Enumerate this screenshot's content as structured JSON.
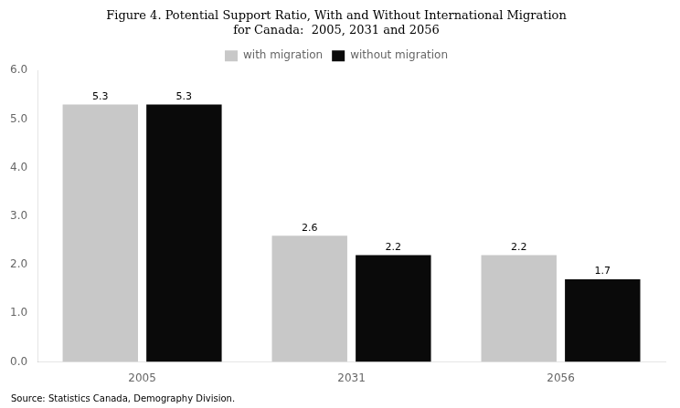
{
  "chart_data": {
    "type": "bar",
    "title": "Figure 4. Potential Support Ratio, With and Without International Migration\nfor Canada:  2005, 2031 and 2056",
    "categories": [
      "2005",
      "2031",
      "2056"
    ],
    "series": [
      {
        "name": "with migration",
        "color": "#c8c8c8",
        "values": [
          5.3,
          2.6,
          2.2
        ]
      },
      {
        "name": "without migration",
        "color": "#0a0a0a",
        "values": [
          5.3,
          2.2,
          1.7
        ]
      }
    ],
    "ylim": [
      0.0,
      6.0
    ],
    "yticks": [
      {
        "value": 0.0,
        "label": "0.0"
      },
      {
        "value": 1.0,
        "label": "1.0"
      },
      {
        "value": 2.0,
        "label": "2.0"
      },
      {
        "value": 3.0,
        "label": "3.0"
      },
      {
        "value": 4.0,
        "label": "4.0"
      },
      {
        "value": 5.0,
        "label": "5.0"
      },
      {
        "value": 6.0,
        "label": "6.0"
      }
    ],
    "annotations": [
      "Source: Statistics Canada, Demography Division."
    ],
    "data_labels": true,
    "legend": "top",
    "grid": false
  }
}
